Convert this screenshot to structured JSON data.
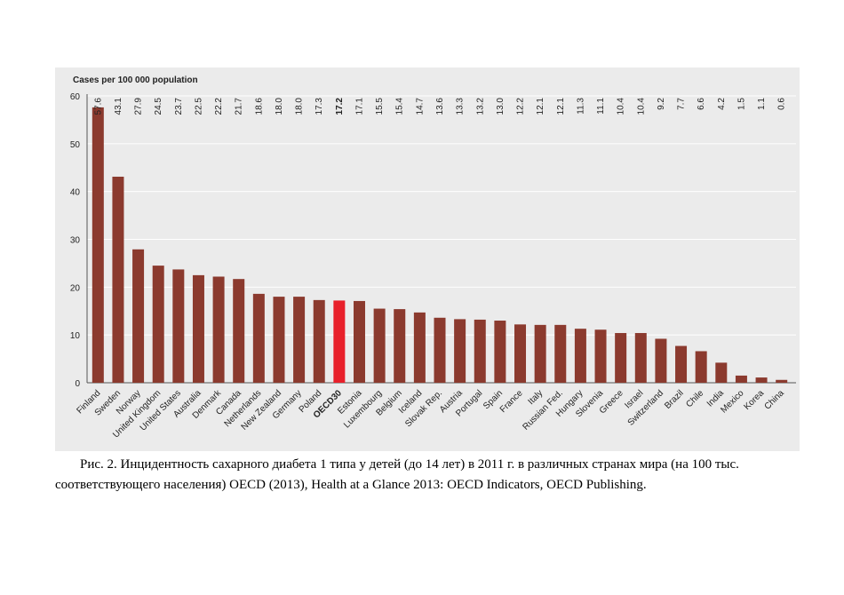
{
  "chart_data": {
    "type": "bar",
    "title": "",
    "ylabel": "Cases per 100 000 population",
    "xlabel": "",
    "ylim": [
      0,
      60
    ],
    "yticks": [
      0,
      10,
      20,
      30,
      40,
      50,
      60
    ],
    "grid": true,
    "categories": [
      "Finland",
      "Sweden",
      "Norway",
      "United Kingdom",
      "United States",
      "Australia",
      "Denmark",
      "Canada",
      "Netherlands",
      "New Zealand",
      "Germany",
      "Poland",
      "OECD30",
      "Estonia",
      "Luxembourg",
      "Belgium",
      "Iceland",
      "Slovak Rep.",
      "Austria",
      "Portugal",
      "Spain",
      "France",
      "Italy",
      "Russian Fed.",
      "Hungary",
      "Slovenia",
      "Greece",
      "Israel",
      "Switzerland",
      "Brazil",
      "Chile",
      "India",
      "Mexico",
      "Korea",
      "China"
    ],
    "values": [
      57.6,
      43.1,
      27.9,
      24.5,
      23.7,
      22.5,
      22.2,
      21.7,
      18.6,
      18.0,
      18.0,
      17.3,
      17.2,
      17.1,
      15.5,
      15.4,
      14.7,
      13.6,
      13.3,
      13.2,
      13.0,
      12.2,
      12.1,
      12.1,
      11.3,
      11.1,
      10.4,
      10.4,
      9.2,
      7.7,
      6.6,
      4.2,
      1.5,
      1.1,
      0.6
    ],
    "value_labels": [
      "57.6",
      "43.1",
      "27.9",
      "24.5",
      "23.7",
      "22.5",
      "22.2",
      "21.7",
      "18.6",
      "18.0",
      "18.0",
      "17.3",
      "17.2",
      "17.1",
      "15.5",
      "15.4",
      "14.7",
      "13.6",
      "13.3",
      "13.2",
      "13.0",
      "12.2",
      "12.1",
      "12.1",
      "11.3",
      "11.1",
      "10.4",
      "10.4",
      "9.2",
      "7.7",
      "6.6",
      "4.2",
      "1.5",
      "1.1",
      "0.6"
    ],
    "highlight": "OECD30",
    "colors": {
      "bar": "#8b3a2e",
      "highlight": "#e8202a",
      "panel": "#ebebeb",
      "grid": "#ffffff"
    }
  },
  "caption": {
    "text": "Рис. 2. Инцидентность сахарного диабета 1 типа у детей (до 14 лет) в 2011 г. в различных странах мира (на 100 тыс. соответствующего населения) OECD (2013), Health at a Glance 2013: OECD Indicators, OECD Publishing."
  }
}
